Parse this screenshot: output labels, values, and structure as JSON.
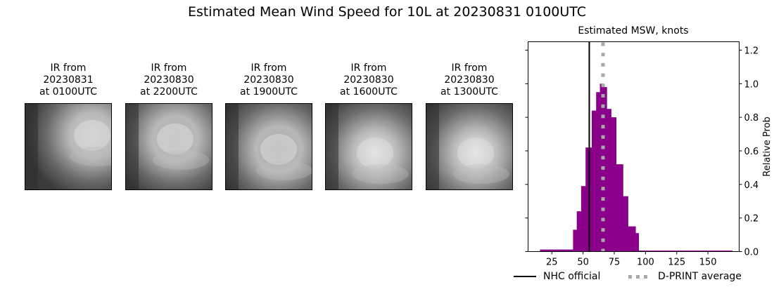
{
  "figure": {
    "suptitle": "Estimated Mean Wind Speed for 10L at 20230831 0100UTC"
  },
  "ir_panels": [
    {
      "title_line1": "IR from",
      "title_line2": "20230831",
      "title_line3": "at 0100UTC",
      "icon": "satellite-ir-image"
    },
    {
      "title_line1": "IR from",
      "title_line2": "20230830",
      "title_line3": "at 2200UTC",
      "icon": "satellite-ir-image"
    },
    {
      "title_line1": "IR from",
      "title_line2": "20230830",
      "title_line3": "at 1900UTC",
      "icon": "satellite-ir-image"
    },
    {
      "title_line1": "IR from",
      "title_line2": "20230830",
      "title_line3": "at 1600UTC",
      "icon": "satellite-ir-image"
    },
    {
      "title_line1": "IR from",
      "title_line2": "20230830",
      "title_line3": "at 1300UTC",
      "icon": "satellite-ir-image"
    }
  ],
  "chart_data": {
    "type": "bar",
    "title": "Estimated MSW, knots",
    "xlabel": "",
    "ylabel": "Relative Prob",
    "xlim": [
      6,
      175
    ],
    "ylim": [
      0,
      1.25
    ],
    "xticks": [
      25,
      50,
      75,
      100,
      125,
      150
    ],
    "yticks": [
      0.0,
      0.2,
      0.4,
      0.6,
      0.8,
      1.0,
      1.2
    ],
    "yaxis_position": "right",
    "grid": false,
    "bar_color": "#8b008b",
    "bins": [
      {
        "x0": 15.5,
        "x1": 42,
        "value": 0.012
      },
      {
        "x0": 42,
        "x1": 45,
        "value": 0.13
      },
      {
        "x0": 45,
        "x1": 48.5,
        "value": 0.24
      },
      {
        "x0": 48.5,
        "x1": 52,
        "value": 0.39
      },
      {
        "x0": 52,
        "x1": 57,
        "value": 0.62
      },
      {
        "x0": 57,
        "x1": 60.5,
        "value": 0.84
      },
      {
        "x0": 60.5,
        "x1": 63.5,
        "value": 0.95
      },
      {
        "x0": 63.5,
        "x1": 66.5,
        "value": 1.0
      },
      {
        "x0": 66.5,
        "x1": 69,
        "value": 0.98
      },
      {
        "x0": 69,
        "x1": 72.5,
        "value": 0.85
      },
      {
        "x0": 72.5,
        "x1": 76.5,
        "value": 0.8
      },
      {
        "x0": 76.5,
        "x1": 82,
        "value": 0.52
      },
      {
        "x0": 82,
        "x1": 86,
        "value": 0.33
      },
      {
        "x0": 86,
        "x1": 92,
        "value": 0.15
      },
      {
        "x0": 92,
        "x1": 94.5,
        "value": 0.11
      },
      {
        "x0": 94.5,
        "x1": 169.5,
        "value": 0.006
      }
    ],
    "vlines": [
      {
        "name": "NHC official",
        "x": 55,
        "color": "#000000",
        "style": "solid"
      },
      {
        "name": "D-PRINT average",
        "x": 66,
        "color": "#a9a9a9",
        "style": "dotted"
      }
    ],
    "legend": {
      "position": "below",
      "entries": [
        "NHC official",
        "D-PRINT average"
      ]
    }
  }
}
